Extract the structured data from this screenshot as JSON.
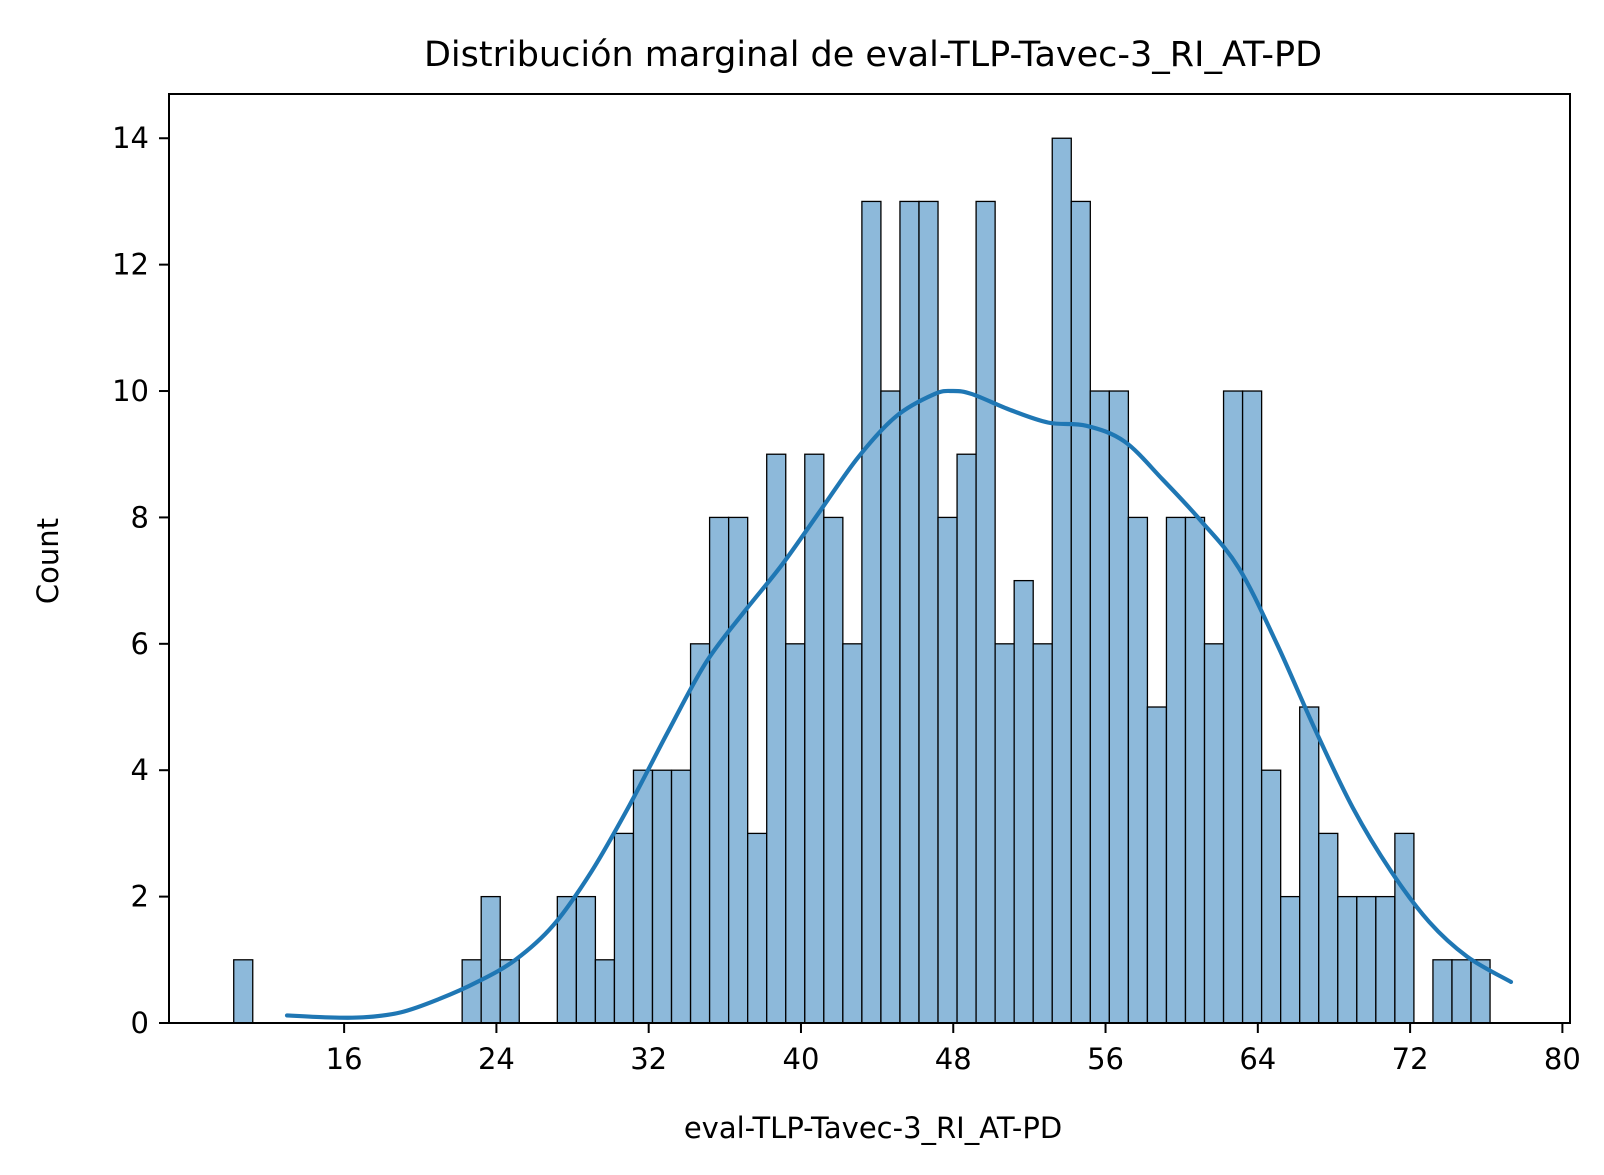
{
  "chart_data": {
    "type": "bar",
    "subtype": "histogram-with-kde",
    "title": "Distribución marginal de eval-TLP-Tavec-3_RI_AT-PD",
    "xlabel": "eval-TLP-Tavec-3_RI_AT-PD",
    "ylabel": "Count",
    "xlim": [
      6.8,
      80.4
    ],
    "ylim": [
      0,
      14.7
    ],
    "xticks": [
      16,
      24,
      32,
      40,
      48,
      56,
      64,
      72,
      80
    ],
    "yticks": [
      0,
      2,
      4,
      6,
      8,
      10,
      12,
      14
    ],
    "grid": false,
    "legend": "none",
    "bin_start": 10.2,
    "bin_width": 1.0,
    "counts": [
      1,
      0,
      0,
      0,
      0,
      0,
      0,
      0,
      0,
      0,
      0,
      0,
      1,
      2,
      1,
      0,
      0,
      2,
      2,
      1,
      3,
      4,
      4,
      4,
      6,
      8,
      8,
      3,
      9,
      6,
      9,
      8,
      6,
      13,
      10,
      13,
      13,
      8,
      9,
      13,
      6,
      7,
      6,
      14,
      13,
      10,
      10,
      8,
      5,
      8,
      8,
      6,
      10,
      10,
      4,
      2,
      5,
      3,
      2,
      2,
      2,
      3,
      0,
      1,
      1,
      1
    ],
    "kde": {
      "x": [
        13,
        15,
        17,
        19,
        21,
        23,
        25,
        27,
        29,
        31,
        33,
        35,
        37,
        39,
        41,
        43,
        45,
        47,
        48,
        49,
        51,
        53,
        55,
        57,
        59,
        61,
        63,
        65,
        67,
        69,
        71,
        73,
        75,
        77.3
      ],
      "y": [
        0.12,
        0.09,
        0.09,
        0.17,
        0.38,
        0.65,
        1.0,
        1.55,
        2.4,
        3.45,
        4.6,
        5.7,
        6.5,
        7.25,
        8.1,
        8.95,
        9.6,
        9.95,
        10.0,
        9.95,
        9.7,
        9.5,
        9.45,
        9.2,
        8.6,
        7.95,
        7.2,
        6.0,
        4.65,
        3.4,
        2.4,
        1.6,
        1.05,
        0.65
      ]
    },
    "colors": {
      "bar_fill": "#8db9da",
      "bar_edge": "#000000",
      "kde_line": "#1f77b4"
    }
  }
}
